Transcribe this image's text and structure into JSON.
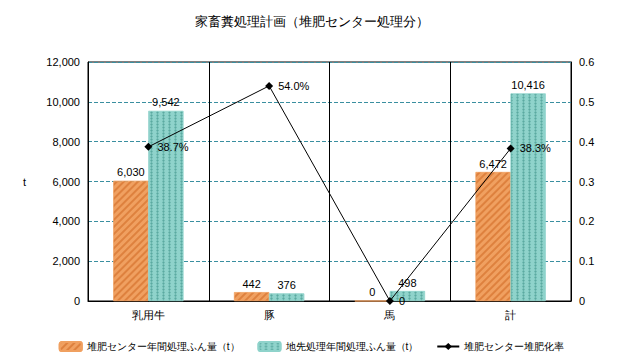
{
  "chart_data": {
    "type": "bar",
    "title": "家畜糞処理計画（堆肥センター処理分）",
    "categories": [
      "乳用牛",
      "豚",
      "馬",
      "計"
    ],
    "ylabel": "t",
    "ylim": [
      0,
      12000
    ],
    "yticks": [
      0,
      {
        "value": 2000,
        "label": "2,000"
      },
      {
        "value": 4000,
        "label": "4,000"
      },
      {
        "value": 6000,
        "label": "6,000"
      },
      {
        "value": 8000,
        "label": "8,000"
      },
      {
        "value": 10000,
        "label": "10,000"
      },
      {
        "value": 12000,
        "label": "12,000"
      }
    ],
    "y2lim": [
      0,
      0.6
    ],
    "y2ticks": [
      0,
      0.1,
      0.2,
      0.3,
      0.4,
      0.5,
      0.6
    ],
    "grid": true,
    "legend": "bottom",
    "data_labels": true,
    "series": [
      {
        "name": "堆肥センター年間処理ふん量（t）",
        "type": "bar",
        "color": "#f0a060",
        "values": [
          6030,
          442,
          0,
          6472
        ],
        "value_labels": [
          "6,030",
          "442",
          "0",
          "6,472"
        ]
      },
      {
        "name": "地先処理年間処理ふん量（t）",
        "type": "bar",
        "color": "#8fd3cb",
        "values": [
          9542,
          376,
          498,
          10416
        ],
        "value_labels": [
          "9,542",
          "376",
          "498",
          "10,416"
        ]
      },
      {
        "name": "堆肥センター堆肥化率",
        "type": "line",
        "axis": "y2",
        "color": "#000000",
        "marker": "diamond",
        "values": [
          0.387,
          0.54,
          0,
          0.383
        ],
        "value_labels": [
          "38.7%",
          "54.0%",
          "0",
          "38.3%"
        ]
      }
    ]
  }
}
